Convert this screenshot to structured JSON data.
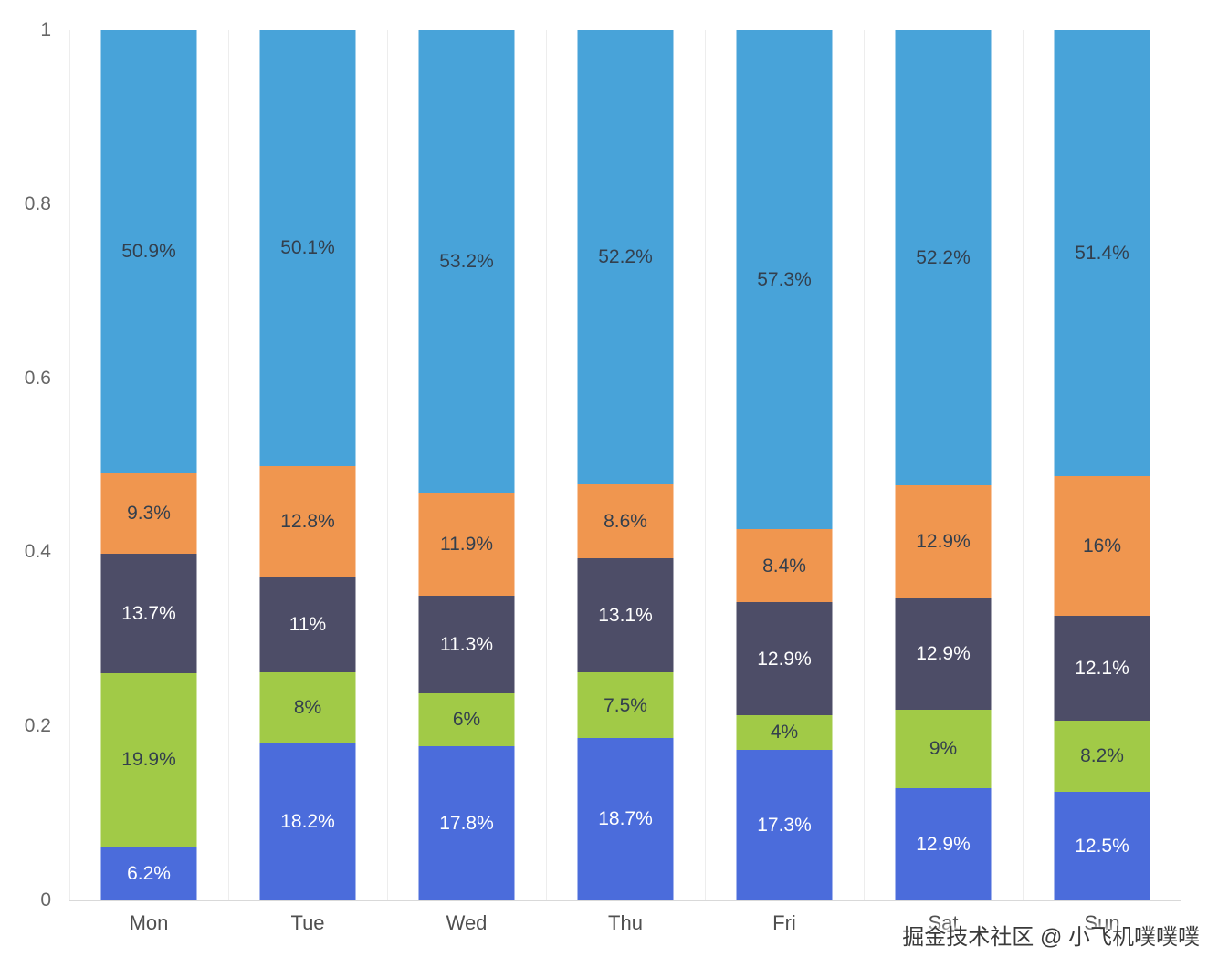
{
  "chart_data": {
    "type": "bar",
    "stacked": true,
    "normalized": true,
    "title": "",
    "xlabel": "",
    "ylabel": "",
    "legend": "none",
    "grid": "vertical-splitlines",
    "ylim": [
      0,
      1
    ],
    "y_ticks": [
      "0",
      "0.2",
      "0.4",
      "0.6",
      "0.8",
      "1"
    ],
    "categories": [
      "Mon",
      "Tue",
      "Wed",
      "Thu",
      "Fri",
      "Sat",
      "Sun"
    ],
    "series": [
      {
        "color": "#4b6cdb",
        "label_color": "#ffffff",
        "values": [
          6.2,
          18.2,
          17.8,
          18.7,
          17.3,
          12.9,
          12.5
        ],
        "labels": [
          "6.2%",
          "18.2%",
          "17.8%",
          "18.7%",
          "17.3%",
          "12.9%",
          "12.5%"
        ]
      },
      {
        "color": "#a1ca47",
        "label_color": "#333f4d",
        "values": [
          19.9,
          8,
          6,
          7.5,
          4,
          9,
          8.2
        ],
        "labels": [
          "19.9%",
          "8%",
          "6%",
          "7.5%",
          "4%",
          "9%",
          "8.2%"
        ]
      },
      {
        "color": "#4d4d67",
        "label_color": "#ffffff",
        "values": [
          13.7,
          11,
          11.3,
          13.1,
          12.9,
          12.9,
          12.1
        ],
        "labels": [
          "13.7%",
          "11%",
          "11.3%",
          "13.1%",
          "12.9%",
          "12.9%",
          "12.1%"
        ]
      },
      {
        "color": "#f0964f",
        "label_color": "#333f4d",
        "values": [
          9.3,
          12.8,
          11.9,
          8.6,
          8.4,
          12.9,
          16
        ],
        "labels": [
          "9.3%",
          "12.8%",
          "11.9%",
          "8.6%",
          "8.4%",
          "12.9%",
          "16%"
        ]
      },
      {
        "color": "#48a3d9",
        "label_color": "#333f4d",
        "values": [
          50.9,
          50.1,
          53.2,
          52.2,
          57.3,
          52.2,
          51.4
        ],
        "labels": [
          "50.9%",
          "50.1%",
          "53.2%",
          "52.2%",
          "57.3%",
          "52.2%",
          "51.4%"
        ]
      }
    ]
  },
  "watermark": "掘金技术社区 @ 小飞机噗噗噗"
}
